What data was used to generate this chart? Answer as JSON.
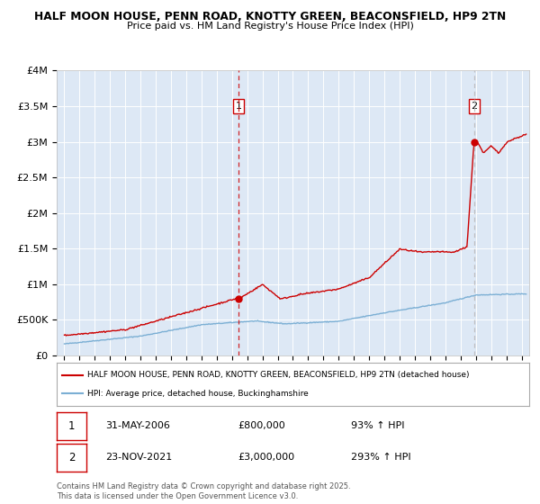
{
  "title_line1": "HALF MOON HOUSE, PENN ROAD, KNOTTY GREEN, BEACONSFIELD, HP9 2TN",
  "title_line2": "Price paid vs. HM Land Registry's House Price Index (HPI)",
  "bg_color": "#dde8f5",
  "fig_bg_color": "#ffffff",
  "red_line_color": "#cc0000",
  "blue_line_color": "#7bafd4",
  "purchase1_year": 2006.42,
  "purchase1_price": 800000,
  "purchase2_year": 2021.9,
  "purchase2_price": 3000000,
  "ylim": [
    0,
    4000000
  ],
  "xlim": [
    1994.5,
    2025.5
  ],
  "legend_label_red": "HALF MOON HOUSE, PENN ROAD, KNOTTY GREEN, BEACONSFIELD, HP9 2TN (detached house)",
  "legend_label_blue": "HPI: Average price, detached house, Buckinghamshire",
  "note1_label": "1",
  "note1_date": "31-MAY-2006",
  "note1_price": "£800,000",
  "note1_hpi": "93% ↑ HPI",
  "note2_label": "2",
  "note2_date": "23-NOV-2021",
  "note2_price": "£3,000,000",
  "note2_hpi": "293% ↑ HPI",
  "footer": "Contains HM Land Registry data © Crown copyright and database right 2025.\nThis data is licensed under the Open Government Licence v3.0.",
  "yticks": [
    0,
    500000,
    1000000,
    1500000,
    2000000,
    2500000,
    3000000,
    3500000,
    4000000
  ],
  "ytick_labels": [
    "£0",
    "£500K",
    "£1M",
    "£1.5M",
    "£2M",
    "£2.5M",
    "£3M",
    "£3.5M",
    "£4M"
  ],
  "xticks": [
    1995,
    1996,
    1997,
    1998,
    1999,
    2000,
    2001,
    2002,
    2003,
    2004,
    2005,
    2006,
    2007,
    2008,
    2009,
    2010,
    2011,
    2012,
    2013,
    2014,
    2015,
    2016,
    2017,
    2018,
    2019,
    2020,
    2021,
    2022,
    2023,
    2024,
    2025
  ]
}
